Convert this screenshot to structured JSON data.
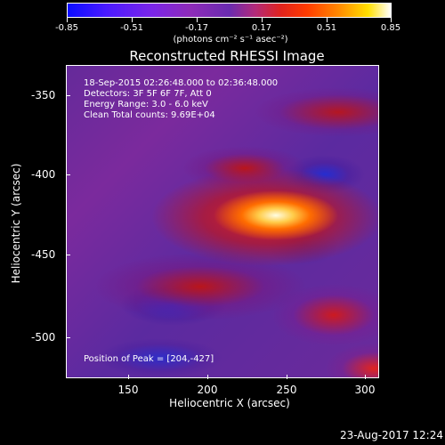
{
  "colorbar": {
    "labels": [
      "-0.85",
      "-0.51",
      "-0.17",
      "0.17",
      "0.51",
      "0.85"
    ],
    "units": "(photons cm⁻² s⁻¹ asec⁻²)"
  },
  "title": "Reconstructed RHESSI Image",
  "info": {
    "time_range": "18-Sep-2015 02:26:48.000 to 02:36:48.000",
    "detectors": "Detectors: 3F 5F 6F 7F, Att 0",
    "energy": "Energy Range: 3.0 - 6.0 keV",
    "clean": "Clean    Total counts: 9.69E+04",
    "peak": "Position of Peak = [204,-427]"
  },
  "axes": {
    "x_title": "Heliocentric X (arcsec)",
    "y_title": "Heliocentric Y (arcsec)",
    "x_ticks": [
      "150",
      "200",
      "250",
      "300"
    ],
    "y_ticks": [
      "-350",
      "-400",
      "-450",
      "-500"
    ]
  },
  "footer": {
    "timestamp": "23-Aug-2017 12:24"
  }
}
